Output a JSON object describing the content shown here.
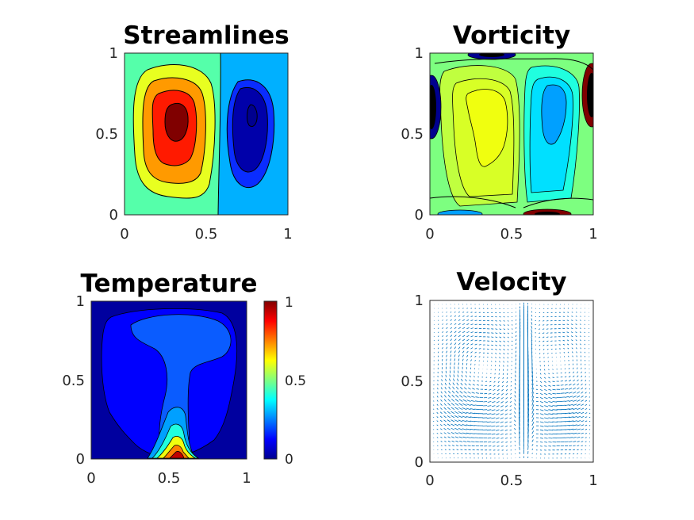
{
  "chart_data": [
    {
      "type": "contour",
      "title": "Streamlines",
      "xlim": [
        0,
        1
      ],
      "ylim": [
        0,
        1
      ],
      "xticks": [
        "0",
        "0.5",
        "1"
      ],
      "yticks": [
        "0",
        "0.5",
        "1"
      ],
      "colormap": "jet",
      "description_values": {
        "left_cell_max_level": "high (red)",
        "right_cell_min_level": "low (dark blue)",
        "left_center": [
          0.34,
          0.58
        ],
        "right_center": [
          0.78,
          0.62
        ]
      }
    },
    {
      "type": "contour",
      "title": "Vorticity",
      "xlim": [
        0,
        1
      ],
      "ylim": [
        0,
        1
      ],
      "xticks": [
        "0",
        "0.5",
        "1"
      ],
      "yticks": [
        "0",
        "0.5",
        "1"
      ],
      "colormap": "jet"
    },
    {
      "type": "contour",
      "title": "Temperature",
      "xlim": [
        0,
        1
      ],
      "ylim": [
        0,
        1
      ],
      "xticks": [
        "0",
        "0.5",
        "1"
      ],
      "yticks": [
        "0",
        "0.5",
        "1"
      ],
      "colormap": "jet",
      "colorbar": {
        "range": [
          0,
          1
        ],
        "ticks": [
          "0",
          "0.5",
          "1"
        ]
      }
    },
    {
      "type": "quiver",
      "title": "Velocity",
      "xlim": [
        0,
        1
      ],
      "ylim": [
        0,
        1
      ],
      "xticks": [
        "0",
        "0.5",
        "1"
      ],
      "yticks": [
        "0",
        "0.5",
        "1"
      ],
      "color": "#0072bd",
      "vortex_centers": [
        [
          0.33,
          0.58
        ],
        [
          0.78,
          0.62
        ]
      ],
      "grid_n": 41
    }
  ]
}
